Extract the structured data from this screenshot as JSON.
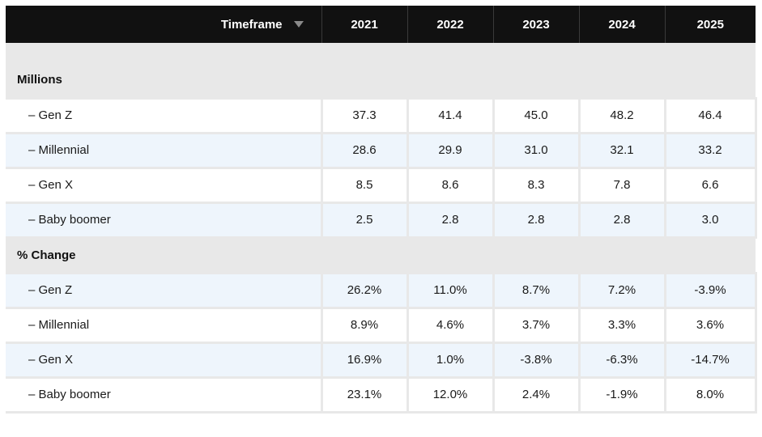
{
  "chart_data": {
    "type": "table",
    "header": {
      "label": "Timeframe",
      "sort_icon": "sort-down-icon",
      "years": [
        "2021",
        "2022",
        "2023",
        "2024",
        "2025"
      ]
    },
    "sections": [
      {
        "title": "Millions",
        "rows": [
          {
            "label": "– Gen Z",
            "values": [
              "37.3",
              "41.4",
              "45.0",
              "48.2",
              "46.4"
            ]
          },
          {
            "label": "– Millennial",
            "values": [
              "28.6",
              "29.9",
              "31.0",
              "32.1",
              "33.2"
            ]
          },
          {
            "label": "– Gen X",
            "values": [
              "8.5",
              "8.6",
              "8.3",
              "7.8",
              "6.6"
            ]
          },
          {
            "label": "– Baby boomer",
            "values": [
              "2.5",
              "2.8",
              "2.8",
              "2.8",
              "3.0"
            ]
          }
        ]
      },
      {
        "title": "% Change",
        "rows": [
          {
            "label": "– Gen Z",
            "values": [
              "26.2%",
              "11.0%",
              "8.7%",
              "7.2%",
              "-3.9%"
            ]
          },
          {
            "label": "– Millennial",
            "values": [
              "8.9%",
              "4.6%",
              "3.7%",
              "3.3%",
              "3.6%"
            ]
          },
          {
            "label": "– Gen X",
            "values": [
              "16.9%",
              "1.0%",
              "-3.8%",
              "-6.3%",
              "-14.7%"
            ]
          },
          {
            "label": "– Baby boomer",
            "values": [
              "23.1%",
              "12.0%",
              "2.4%",
              "-1.9%",
              "8.0%"
            ]
          }
        ]
      }
    ]
  },
  "colors": {
    "header_bg": "#111111",
    "section_bg": "#e8e8e8",
    "row_alt_bg": "#eef5fc",
    "row_bg": "#ffffff"
  }
}
